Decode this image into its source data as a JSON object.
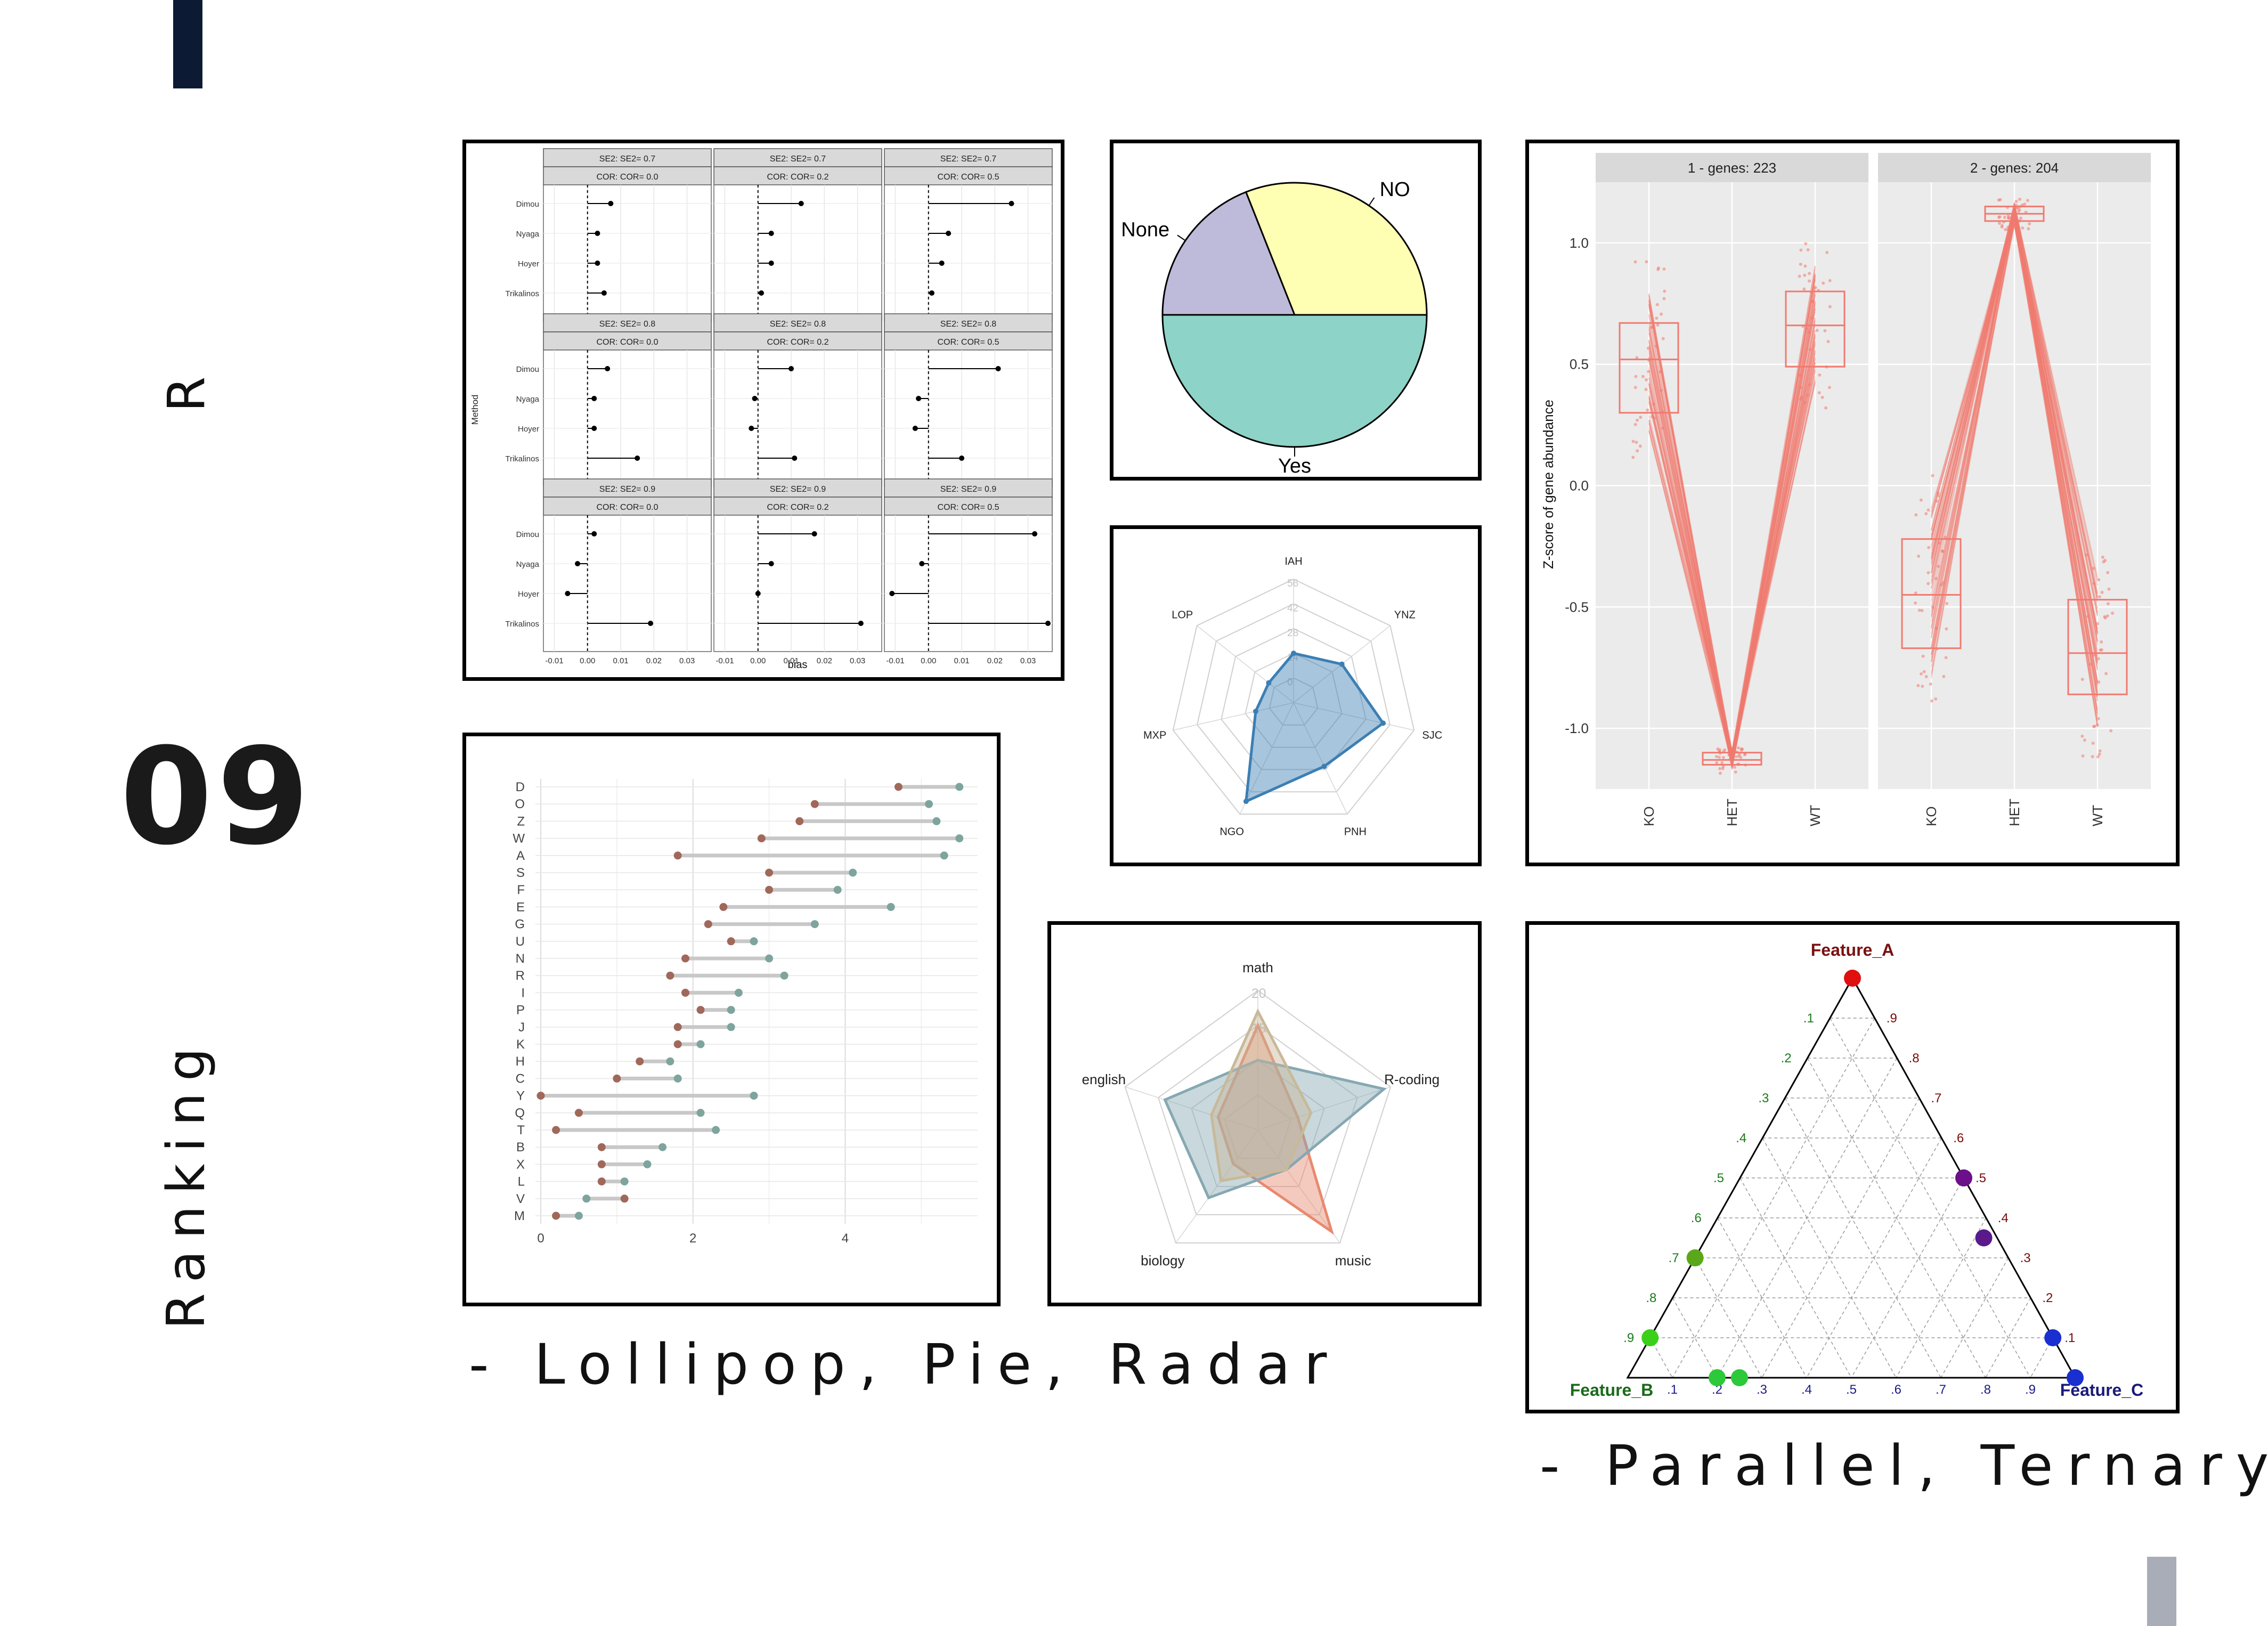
{
  "slide": {
    "side_title_top": "R",
    "number": "09",
    "side_title_bottom": "Ranking",
    "caption_left": "- Lollipop, Pie, Radar",
    "caption_right": "- Parallel, Ternary",
    "colors": {
      "accent_dark": "#0d1a33",
      "accent_gray": "#a9adb8"
    }
  },
  "chart_data": [
    {
      "id": "forest",
      "type": "scatter",
      "subtype": "faceted-forest-plot",
      "xlabel": "bias",
      "ylabel": "Method",
      "methods": [
        "Dimou",
        "Nyaga",
        "Hoyer",
        "Trikalinos"
      ],
      "xticks": [
        "-0.01",
        "0.00",
        "0.01",
        "0.02",
        "0.03"
      ],
      "xlim": [
        -0.012,
        0.036
      ],
      "facets": [
        {
          "se": "SE2: SE2= 0.7",
          "cor": "COR: COR= 0.0",
          "values": [
            0.007,
            0.003,
            0.003,
            0.005
          ]
        },
        {
          "se": "SE2: SE2= 0.7",
          "cor": "COR: COR= 0.2",
          "values": [
            0.013,
            0.004,
            0.004,
            0.001
          ]
        },
        {
          "se": "SE2: SE2= 0.7",
          "cor": "COR: COR= 0.5",
          "values": [
            0.025,
            0.006,
            0.004,
            0.001
          ]
        },
        {
          "se": "SE2: SE2= 0.8",
          "cor": "COR: COR= 0.0",
          "values": [
            0.006,
            0.002,
            0.002,
            0.015
          ]
        },
        {
          "se": "SE2: SE2= 0.8",
          "cor": "COR: COR= 0.2",
          "values": [
            0.01,
            -0.001,
            -0.002,
            0.011
          ]
        },
        {
          "se": "SE2: SE2= 0.8",
          "cor": "COR: COR= 0.5",
          "values": [
            0.021,
            -0.003,
            -0.004,
            0.01
          ]
        },
        {
          "se": "SE2: SE2= 0.9",
          "cor": "COR: COR= 0.0",
          "values": [
            0.002,
            -0.003,
            -0.006,
            0.019
          ]
        },
        {
          "se": "SE2: SE2= 0.9",
          "cor": "COR: COR= 0.2",
          "values": [
            0.017,
            0.004,
            0.0,
            0.031
          ]
        },
        {
          "se": "SE2: SE2= 0.9",
          "cor": "COR: COR= 0.5",
          "values": [
            0.032,
            -0.002,
            -0.011,
            0.036
          ]
        }
      ]
    },
    {
      "id": "pie",
      "type": "pie",
      "labels": [
        "Yes",
        "None",
        "NO"
      ],
      "values": [
        50,
        19,
        31
      ],
      "colors": [
        "#8dd3c7",
        "#bebada",
        "#ffffb3"
      ]
    },
    {
      "id": "radar1",
      "type": "radar",
      "axes": [
        "IAH",
        "YNZ",
        "SJC",
        "PNH",
        "NGO",
        "MXP",
        "LOP"
      ],
      "grid_labels": [
        "56",
        "42",
        "28",
        "14",
        "0"
      ],
      "max": 70,
      "values": [
        28,
        35,
        52,
        40,
        62,
        22,
        18
      ],
      "color": "#3b7fb4"
    },
    {
      "id": "radar2",
      "type": "radar",
      "axes": [
        "math",
        "R-coding",
        "music",
        "biology",
        "english"
      ],
      "grid_labels": [
        "20",
        "15"
      ],
      "max": 20,
      "series": [
        {
          "values": [
            15,
            6,
            18,
            6,
            6
          ],
          "color": "#e8896f"
        },
        {
          "values": [
            10,
            19,
            7,
            12,
            14
          ],
          "color": "#86a8b2"
        },
        {
          "values": [
            17,
            8,
            7,
            9,
            7
          ],
          "color": "#c8b99a"
        }
      ]
    },
    {
      "id": "parallel",
      "type": "line",
      "subtype": "parallel-coordinates-with-boxplots",
      "ylabel": "Z-score of gene abundance",
      "yticks": [
        "1.0",
        "0.5",
        "0.0",
        "-0.5",
        "-1.0"
      ],
      "ylim": [
        -1.25,
        1.25
      ],
      "categories": [
        "KO",
        "HET",
        "WT"
      ],
      "panels": [
        {
          "title": "1 - genes: 223",
          "box": [
            [
              0.3,
              0.52,
              0.67
            ],
            [
              -1.15,
              -1.13,
              -1.1
            ],
            [
              0.49,
              0.66,
              0.8
            ]
          ],
          "line_color": "#f07a70"
        },
        {
          "title": "2 - genes: 204",
          "box": [
            [
              -0.67,
              -0.45,
              -0.22
            ],
            [
              1.09,
              1.12,
              1.15
            ],
            [
              -0.86,
              -0.69,
              -0.47
            ]
          ],
          "line_color": "#f07a70"
        }
      ]
    },
    {
      "id": "lollipop",
      "type": "scatter",
      "subtype": "dumbbell",
      "categories": [
        "D",
        "O",
        "Z",
        "W",
        "A",
        "S",
        "F",
        "E",
        "G",
        "U",
        "N",
        "R",
        "I",
        "P",
        "J",
        "K",
        "H",
        "C",
        "Y",
        "Q",
        "T",
        "B",
        "X",
        "L",
        "V",
        "M"
      ],
      "xticks": [
        "0",
        "2",
        "4"
      ],
      "xlim": [
        0,
        5.6
      ],
      "series": [
        {
          "name": "value1",
          "color": "#a0685a",
          "values": [
            4.7,
            3.6,
            3.4,
            2.9,
            1.8,
            3.0,
            3.0,
            2.4,
            2.2,
            2.5,
            1.9,
            1.7,
            1.9,
            2.1,
            1.8,
            1.8,
            1.3,
            1.0,
            0.0,
            0.5,
            0.2,
            0.8,
            0.8,
            0.8,
            1.1,
            0.2
          ]
        },
        {
          "name": "value2",
          "color": "#7ea49d",
          "values": [
            5.5,
            5.1,
            5.2,
            5.5,
            5.3,
            4.1,
            3.9,
            4.6,
            3.6,
            2.8,
            3.0,
            3.2,
            2.6,
            2.5,
            2.5,
            2.1,
            1.7,
            1.8,
            2.8,
            2.1,
            2.3,
            1.6,
            1.4,
            1.1,
            0.6,
            0.5
          ]
        }
      ]
    },
    {
      "id": "ternary",
      "type": "scatter",
      "subtype": "ternary",
      "axis_labels": [
        "Feature_A",
        "Feature_B",
        "Feature_C"
      ],
      "tick_labels": [
        ".1",
        ".2",
        ".3",
        ".4",
        ".5",
        ".6",
        ".7",
        ".8",
        ".9"
      ],
      "points": [
        {
          "a": 1.0,
          "b": 0.0,
          "c": 0.0,
          "color": "#e01010"
        },
        {
          "a": 0.5,
          "b": 0.0,
          "c": 0.5,
          "color": "#6b0f8a"
        },
        {
          "a": 0.35,
          "b": 0.03,
          "c": 0.62,
          "color": "#5a1a8c"
        },
        {
          "a": 0.1,
          "b": 0.0,
          "c": 0.9,
          "color": "#1a2fd0"
        },
        {
          "a": 0.0,
          "b": 0.0,
          "c": 1.0,
          "color": "#1a2fd0"
        },
        {
          "a": 0.3,
          "b": 0.7,
          "c": 0.0,
          "color": "#5aa81a"
        },
        {
          "a": 0.1,
          "b": 0.9,
          "c": 0.0,
          "color": "#3ad01a"
        },
        {
          "a": 0.0,
          "b": 0.8,
          "c": 0.2,
          "color": "#2cc93a"
        },
        {
          "a": 0.0,
          "b": 0.75,
          "c": 0.25,
          "color": "#2cc93a"
        }
      ]
    }
  ]
}
